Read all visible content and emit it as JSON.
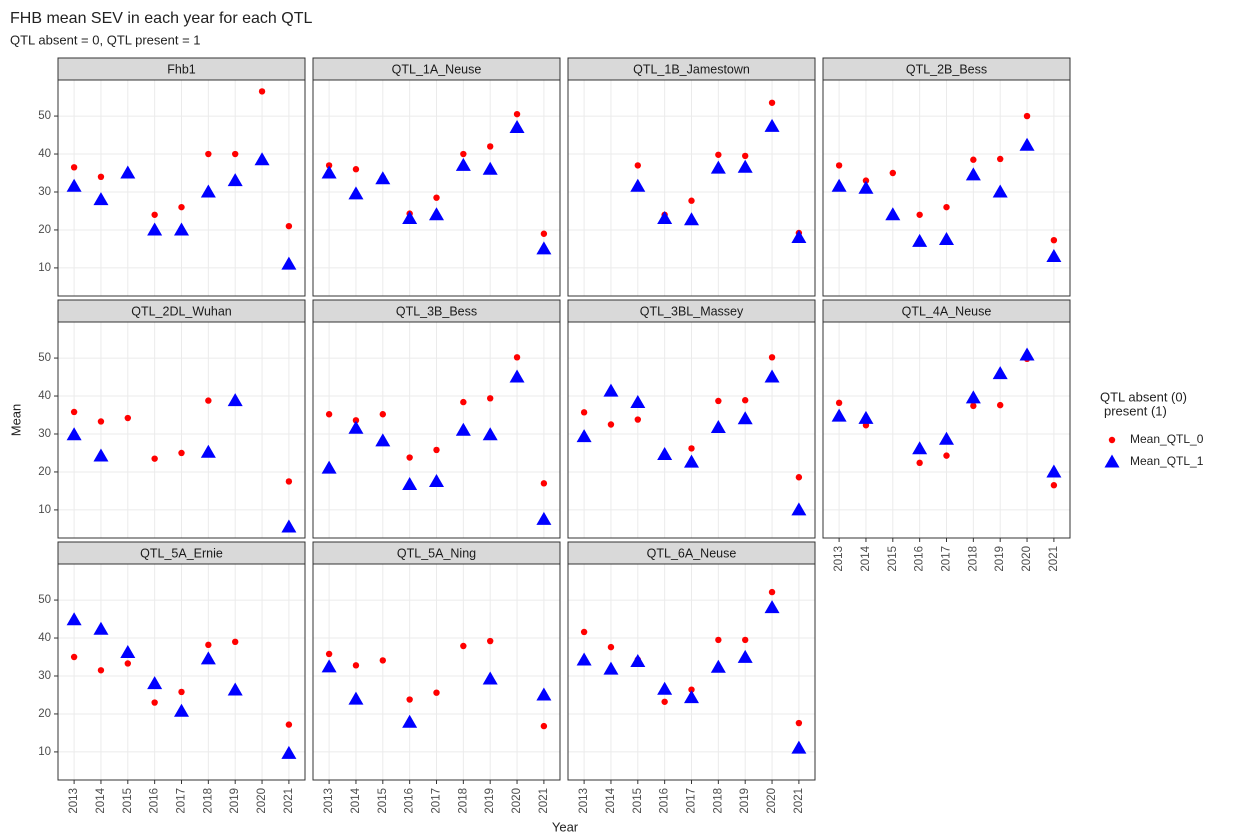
{
  "title": "FHB mean SEV in each year for each QTL",
  "subtitle": "QTL absent = 0, QTL present = 1",
  "x_label": "Year",
  "y_label": "Mean",
  "legend_title": [
    "QTL absent (0)",
    "present (1)"
  ],
  "categories": [
    "2013",
    "2014",
    "2015",
    "2016",
    "2017",
    "2018",
    "2019",
    "2020",
    "2021"
  ],
  "ylim": [
    2.6,
    59.5
  ],
  "yticks": [
    10,
    20,
    30,
    40,
    50
  ],
  "grid": true,
  "series": [
    {
      "name": "Mean_QTL_0",
      "color": "#ff0000",
      "marker": "circle"
    },
    {
      "name": "Mean_QTL_1",
      "color": "#0000ff",
      "marker": "triangle"
    }
  ],
  "chart_data": [
    {
      "type": "scatter",
      "title": "Fhb1",
      "series": [
        {
          "values": [
            36.5,
            34,
            35,
            24,
            26,
            40,
            40,
            56.5,
            21
          ]
        },
        {
          "values": [
            31.5,
            28,
            35,
            20,
            20,
            30,
            33,
            38.5,
            11
          ]
        }
      ]
    },
    {
      "type": "scatter",
      "title": "QTL_1A_Neuse",
      "series": [
        {
          "values": [
            37,
            36,
            33.8,
            24.3,
            28.5,
            40,
            42,
            50.5,
            19
          ]
        },
        {
          "values": [
            35,
            29.5,
            33.5,
            23,
            24,
            37,
            36,
            47,
            15
          ]
        }
      ]
    },
    {
      "type": "scatter",
      "title": "QTL_1B_Jamestown",
      "series": [
        {
          "values": [
            null,
            null,
            37,
            24,
            27.7,
            39.8,
            39.5,
            53.5,
            19.2
          ]
        },
        {
          "values": [
            null,
            null,
            31.5,
            23,
            22.7,
            36.3,
            36.5,
            47.3,
            18
          ]
        }
      ]
    },
    {
      "type": "scatter",
      "title": "QTL_2B_Bess",
      "series": [
        {
          "values": [
            37,
            33,
            35,
            24,
            26,
            38.5,
            38.7,
            50,
            17.3
          ]
        },
        {
          "values": [
            31.5,
            31,
            24,
            17,
            17.5,
            34.5,
            30,
            42.3,
            13
          ]
        }
      ]
    },
    {
      "type": "scatter",
      "title": "QTL_2DL_Wuhan",
      "series": [
        {
          "values": [
            35.8,
            33.3,
            34.2,
            23.5,
            25,
            38.8,
            null,
            null,
            17.5
          ]
        },
        {
          "values": [
            29.8,
            24.2,
            null,
            null,
            null,
            25.2,
            38.8,
            null,
            5.5
          ]
        }
      ]
    },
    {
      "type": "scatter",
      "title": "QTL_3B_Bess",
      "series": [
        {
          "values": [
            35.2,
            33.6,
            35.2,
            23.8,
            25.8,
            38.4,
            39.4,
            50.2,
            17
          ]
        },
        {
          "values": [
            21,
            31.5,
            28.2,
            16.7,
            17.5,
            31,
            29.8,
            45,
            7.5
          ]
        }
      ]
    },
    {
      "type": "scatter",
      "title": "QTL_3BL_Massey",
      "series": [
        {
          "values": [
            35.7,
            32.5,
            33.8,
            24.5,
            26.2,
            38.7,
            38.9,
            50.2,
            18.6
          ]
        },
        {
          "values": [
            29.3,
            41.3,
            38.3,
            24.6,
            22.6,
            31.7,
            34,
            45,
            10
          ]
        }
      ]
    },
    {
      "type": "scatter",
      "title": "QTL_4A_Neuse",
      "series": [
        {
          "values": [
            38.2,
            32.3,
            null,
            22.4,
            24.3,
            37.4,
            37.6,
            49.8,
            16.5
          ]
        },
        {
          "values": [
            34.7,
            34.1,
            null,
            26.1,
            28.6,
            39.5,
            45.9,
            50.8,
            20
          ]
        }
      ]
    },
    {
      "type": "scatter",
      "title": "QTL_5A_Ernie",
      "series": [
        {
          "values": [
            35,
            31.5,
            33.3,
            23,
            25.8,
            38.2,
            39,
            null,
            17.2
          ]
        },
        {
          "values": [
            44.8,
            42.3,
            36.2,
            28,
            20.7,
            34.5,
            26.3,
            null,
            9.6
          ]
        }
      ]
    },
    {
      "type": "scatter",
      "title": "QTL_5A_Ning",
      "series": [
        {
          "values": [
            35.8,
            32.8,
            34.1,
            23.8,
            25.6,
            37.9,
            39.2,
            null,
            16.8
          ]
        },
        {
          "values": [
            32.4,
            23.9,
            null,
            17.8,
            null,
            null,
            29.2,
            null,
            25
          ]
        }
      ]
    },
    {
      "type": "scatter",
      "title": "QTL_6A_Neuse",
      "series": [
        {
          "values": [
            41.6,
            37.6,
            34.3,
            23.2,
            26.4,
            39.5,
            39.5,
            52.1,
            17.6
          ]
        },
        {
          "values": [
            34.2,
            31.8,
            33.8,
            26.5,
            24.3,
            32.3,
            34.9,
            48,
            11
          ]
        }
      ]
    }
  ]
}
